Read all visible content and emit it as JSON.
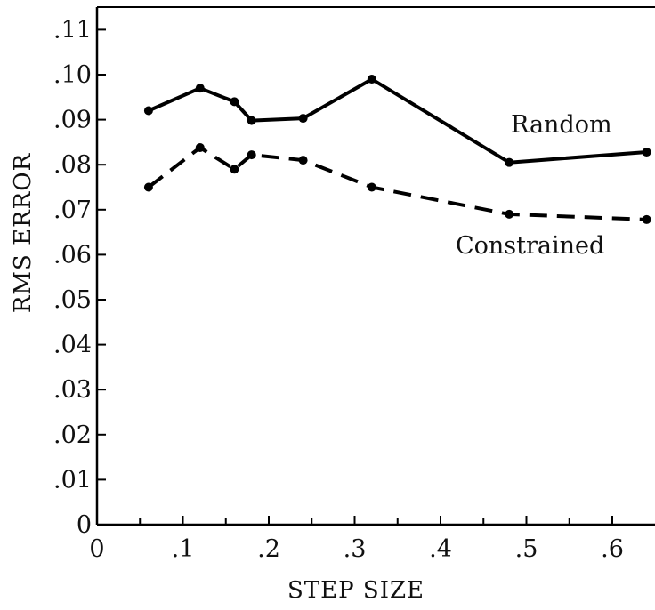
{
  "chart_data": {
    "type": "line",
    "title": "",
    "xlabel": "STEP SIZE",
    "ylabel": "RMS ERROR",
    "xlim": [
      0,
      0.65
    ],
    "ylim": [
      0,
      0.115
    ],
    "x_ticks": [
      0,
      0.1,
      0.2,
      0.3,
      0.4,
      0.5,
      0.6
    ],
    "x_tick_labels": [
      "0",
      ".1",
      ".2",
      ".3",
      ".4",
      ".5",
      ".6"
    ],
    "y_ticks": [
      0,
      0.01,
      0.02,
      0.03,
      0.04,
      0.05,
      0.06,
      0.07,
      0.08,
      0.09,
      0.1,
      0.11
    ],
    "y_tick_labels": [
      "0",
      ".01",
      ".02",
      ".03",
      ".04",
      ".05",
      ".06",
      ".07",
      ".08",
      ".09",
      ".10",
      ".11"
    ],
    "grid": false,
    "legend": "inline labels",
    "series": [
      {
        "name": "Random",
        "style": "solid",
        "color": "#000000",
        "x": [
          0.06,
          0.12,
          0.16,
          0.18,
          0.24,
          0.32,
          0.48,
          0.64
        ],
        "values": [
          0.092,
          0.097,
          0.094,
          0.0898,
          0.0903,
          0.099,
          0.0805,
          0.0828
        ]
      },
      {
        "name": "Constrained",
        "style": "dashed",
        "color": "#000000",
        "x": [
          0.06,
          0.12,
          0.16,
          0.18,
          0.24,
          0.32,
          0.48,
          0.64
        ],
        "values": [
          0.075,
          0.0838,
          0.079,
          0.0822,
          0.081,
          0.075,
          0.069,
          0.0678
        ]
      }
    ]
  }
}
